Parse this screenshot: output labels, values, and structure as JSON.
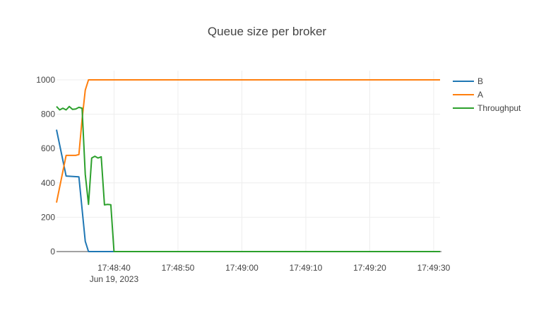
{
  "chart_data": {
    "type": "line",
    "title": "Queue size per broker",
    "xlabel": "",
    "ylabel": "",
    "x_axis": {
      "type": "time",
      "range": [
        "2023-06-19T17:48:31",
        "2023-06-19T17:49:31"
      ],
      "ticks": [
        {
          "value": "2023-06-19T17:48:40",
          "label": "17:48:40",
          "sublabel": "Jun 19, 2023"
        },
        {
          "value": "2023-06-19T17:48:50",
          "label": "17:48:50",
          "sublabel": ""
        },
        {
          "value": "2023-06-19T17:49:00",
          "label": "17:49:00",
          "sublabel": ""
        },
        {
          "value": "2023-06-19T17:49:10",
          "label": "17:49:10",
          "sublabel": ""
        },
        {
          "value": "2023-06-19T17:49:20",
          "label": "17:49:20",
          "sublabel": ""
        },
        {
          "value": "2023-06-19T17:49:30",
          "label": "17:49:30",
          "sublabel": ""
        }
      ]
    },
    "ylim": [
      0,
      1000
    ],
    "y_ticks": [
      0,
      200,
      400,
      600,
      800,
      1000
    ],
    "grid": true,
    "legend_position": "right",
    "series": [
      {
        "name": "B",
        "color": "#1f77b4",
        "points": [
          {
            "x": "2023-06-19T17:48:31.0",
            "y": 710
          },
          {
            "x": "2023-06-19T17:48:32.5",
            "y": 440
          },
          {
            "x": "2023-06-19T17:48:34.5",
            "y": 435
          },
          {
            "x": "2023-06-19T17:48:35.5",
            "y": 60
          },
          {
            "x": "2023-06-19T17:48:36.0",
            "y": 0
          },
          {
            "x": "2023-06-19T17:49:31.0",
            "y": 0
          }
        ]
      },
      {
        "name": "A",
        "color": "#ff7f0e",
        "points": [
          {
            "x": "2023-06-19T17:48:31.0",
            "y": 285
          },
          {
            "x": "2023-06-19T17:48:32.5",
            "y": 560
          },
          {
            "x": "2023-06-19T17:48:34.0",
            "y": 560
          },
          {
            "x": "2023-06-19T17:48:34.5",
            "y": 565
          },
          {
            "x": "2023-06-19T17:48:35.0",
            "y": 770
          },
          {
            "x": "2023-06-19T17:48:35.5",
            "y": 940
          },
          {
            "x": "2023-06-19T17:48:36.0",
            "y": 1000
          },
          {
            "x": "2023-06-19T17:49:31.0",
            "y": 1000
          }
        ]
      },
      {
        "name": "Throughput",
        "color": "#2ca02c",
        "points": [
          {
            "x": "2023-06-19T17:48:31.0",
            "y": 845
          },
          {
            "x": "2023-06-19T17:48:31.5",
            "y": 825
          },
          {
            "x": "2023-06-19T17:48:32.0",
            "y": 835
          },
          {
            "x": "2023-06-19T17:48:32.5",
            "y": 825
          },
          {
            "x": "2023-06-19T17:48:33.0",
            "y": 845
          },
          {
            "x": "2023-06-19T17:48:33.5",
            "y": 828
          },
          {
            "x": "2023-06-19T17:48:34.0",
            "y": 830
          },
          {
            "x": "2023-06-19T17:48:34.5",
            "y": 840
          },
          {
            "x": "2023-06-19T17:48:35.0",
            "y": 835
          },
          {
            "x": "2023-06-19T17:48:35.5",
            "y": 450
          },
          {
            "x": "2023-06-19T17:48:36.0",
            "y": 275
          },
          {
            "x": "2023-06-19T17:48:36.5",
            "y": 545
          },
          {
            "x": "2023-06-19T17:48:37.0",
            "y": 555
          },
          {
            "x": "2023-06-19T17:48:37.5",
            "y": 545
          },
          {
            "x": "2023-06-19T17:48:38.0",
            "y": 552
          },
          {
            "x": "2023-06-19T17:48:38.5",
            "y": 272
          },
          {
            "x": "2023-06-19T17:48:39.0",
            "y": 275
          },
          {
            "x": "2023-06-19T17:48:39.5",
            "y": 273
          },
          {
            "x": "2023-06-19T17:48:40.0",
            "y": 0
          },
          {
            "x": "2023-06-19T17:49:31.0",
            "y": 0
          }
        ]
      }
    ]
  }
}
